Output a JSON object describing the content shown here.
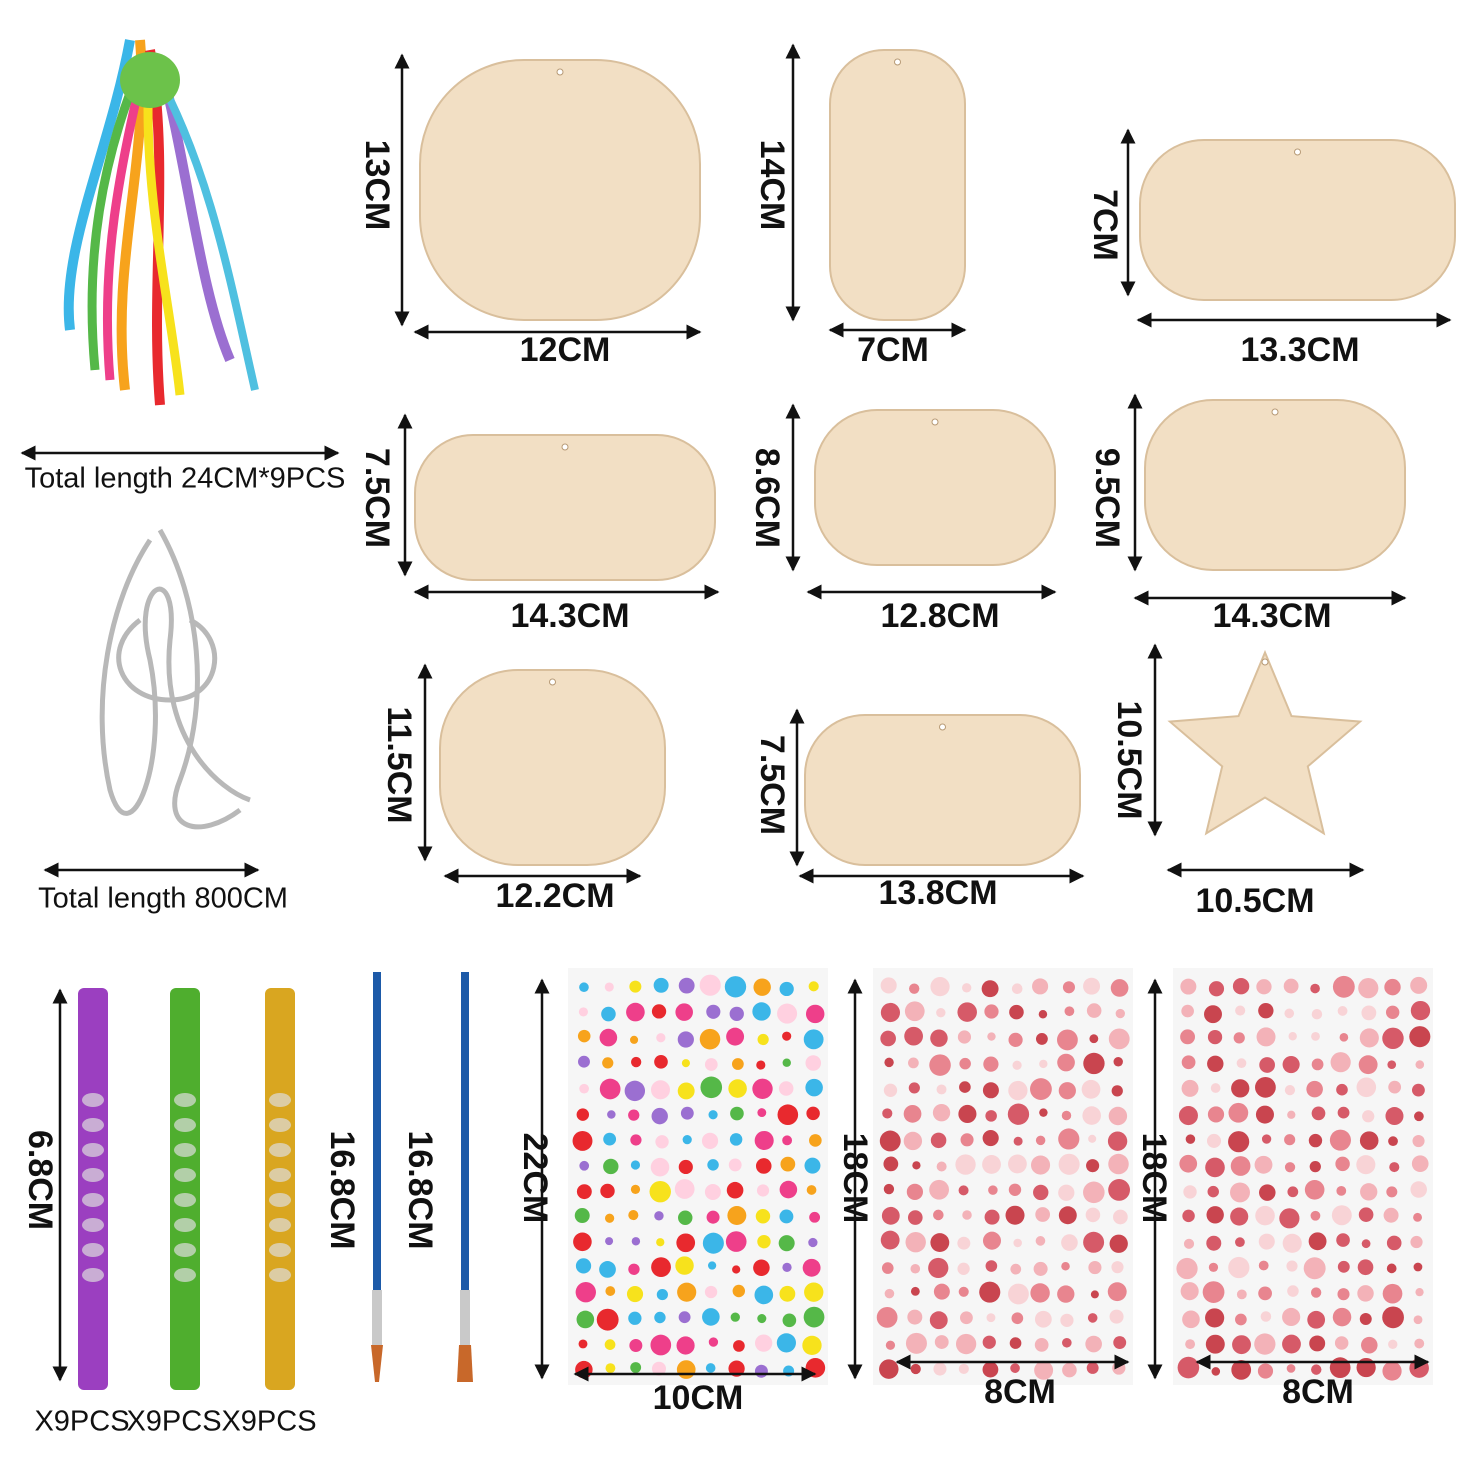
{
  "ribbon": {
    "label": "Total length 24CM*9PCS"
  },
  "cord": {
    "label": "Total length 800CM"
  },
  "ornaments": [
    {
      "height": "13CM",
      "width": "12CM"
    },
    {
      "height": "14CM",
      "width": "7CM"
    },
    {
      "height": "7CM",
      "width": "13.3CM"
    },
    {
      "height": "7.5CM",
      "width": "14.3CM"
    },
    {
      "height": "8.6CM",
      "width": "12.8CM"
    },
    {
      "height": "9.5CM",
      "width": "14.3CM"
    },
    {
      "height": "11.5CM",
      "width": "12.2CM"
    },
    {
      "height": "7.5CM",
      "width": "13.8CM"
    },
    {
      "height": "10.5CM",
      "width": "10.5CM"
    }
  ],
  "tubes": {
    "height": "6.8CM",
    "quantities": [
      "X9PCS",
      "X9PCS",
      "X9PCS"
    ]
  },
  "brushes": [
    {
      "length": "16.8CM"
    },
    {
      "length": "16.8CM"
    }
  ],
  "sticker_sheets": [
    {
      "height": "22CM",
      "width": "10CM"
    },
    {
      "height": "18CM",
      "width": "8CM"
    },
    {
      "height": "18CM",
      "width": "8CM"
    }
  ]
}
